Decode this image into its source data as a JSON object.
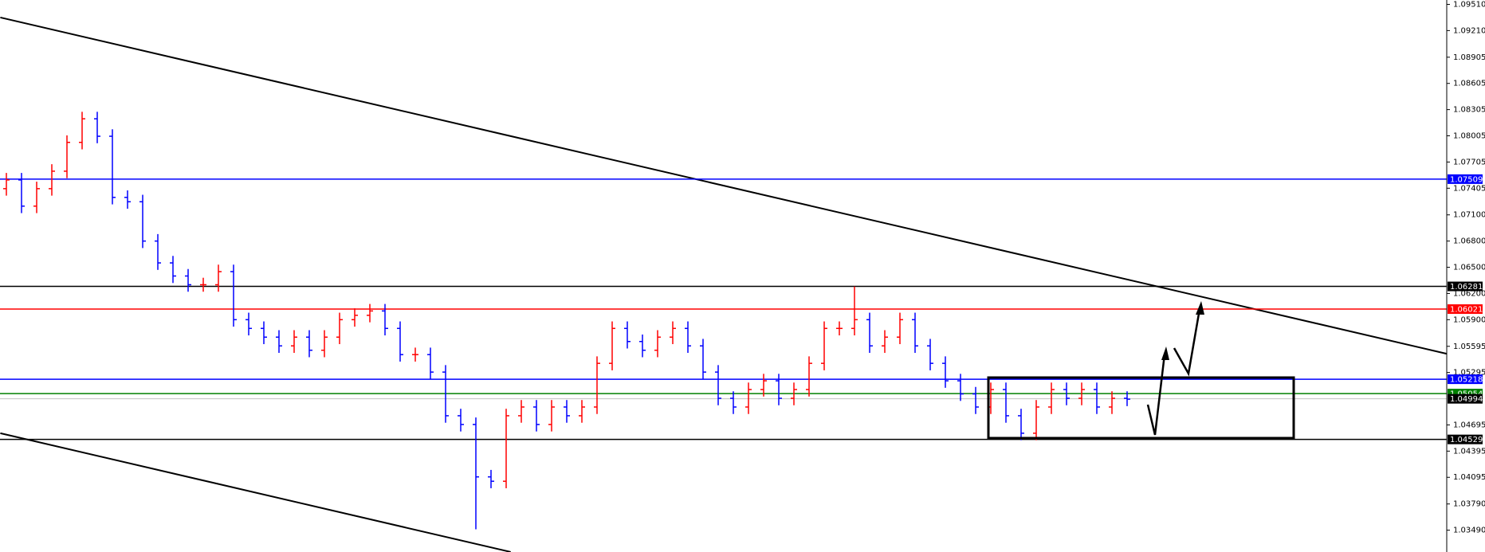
{
  "chart_data": {
    "type": "ohlc",
    "up_color": "#ff0000",
    "down_color": "#0000ff",
    "open": [
      1.074,
      1.075,
      1.072,
      1.074,
      1.076,
      1.0793,
      1.082,
      1.08,
      1.073,
      1.0725,
      1.068,
      1.0655,
      1.064,
      1.063,
      1.063,
      1.0645,
      1.059,
      1.058,
      1.057,
      1.056,
      1.057,
      1.0555,
      1.057,
      1.059,
      1.0595,
      1.06,
      1.058,
      1.055,
      1.055,
      1.053,
      1.048,
      1.047,
      1.041,
      1.0405,
      1.048,
      1.049,
      1.047,
      1.049,
      1.048,
      1.049,
      1.054,
      1.058,
      1.0565,
      1.0555,
      1.057,
      1.058,
      1.056,
      1.053,
      1.05,
      1.049,
      1.051,
      1.052,
      1.05,
      1.051,
      1.054,
      1.058,
      1.058,
      1.059,
      1.056,
      1.057,
      1.059,
      1.056,
      1.054,
      1.052,
      1.0505,
      1.049,
      1.051,
      1.048,
      1.046,
      1.049,
      1.051,
      1.05,
      1.051,
      1.049,
      1.05
    ],
    "high": [
      1.0758,
      1.0758,
      1.0748,
      1.0768,
      1.0801,
      1.0828,
      1.0828,
      1.0808,
      1.0738,
      1.0733,
      1.0688,
      1.0663,
      1.0648,
      1.0638,
      1.0653,
      1.0653,
      1.0598,
      1.0588,
      1.0578,
      1.0578,
      1.0578,
      1.0578,
      1.0598,
      1.0603,
      1.0608,
      1.0608,
      1.0588,
      1.0558,
      1.0558,
      1.0538,
      1.0488,
      1.0478,
      1.0418,
      1.0488,
      1.0498,
      1.0498,
      1.0498,
      1.0498,
      1.0498,
      1.0548,
      1.0588,
      1.0588,
      1.0573,
      1.0578,
      1.0588,
      1.0588,
      1.0568,
      1.0538,
      1.0508,
      1.0518,
      1.0528,
      1.0528,
      1.0518,
      1.0548,
      1.0588,
      1.0588,
      1.0628,
      1.0598,
      1.0578,
      1.0598,
      1.0598,
      1.0568,
      1.0548,
      1.0528,
      1.0513,
      1.0518,
      1.0518,
      1.0488,
      1.0498,
      1.0518,
      1.0518,
      1.0518,
      1.0518,
      1.0508,
      1.0508
    ],
    "low": [
      1.0732,
      1.0712,
      1.0712,
      1.0732,
      1.0752,
      1.0785,
      1.0792,
      1.0722,
      1.0717,
      1.0672,
      1.0647,
      1.0632,
      1.0622,
      1.0622,
      1.0622,
      1.0582,
      1.0572,
      1.0562,
      1.0552,
      1.0552,
      1.0547,
      1.0547,
      1.0562,
      1.0582,
      1.0587,
      1.0572,
      1.0542,
      1.0542,
      1.0522,
      1.0472,
      1.0462,
      1.035,
      1.0397,
      1.0397,
      1.0472,
      1.0462,
      1.0462,
      1.0472,
      1.0472,
      1.0482,
      1.0532,
      1.0557,
      1.0547,
      1.0547,
      1.0562,
      1.0552,
      1.0522,
      1.0492,
      1.0482,
      1.0482,
      1.0502,
      1.0492,
      1.0492,
      1.0502,
      1.0532,
      1.0572,
      1.0572,
      1.0552,
      1.0552,
      1.0562,
      1.0552,
      1.0532,
      1.0512,
      1.0497,
      1.0482,
      1.0482,
      1.0472,
      1.0452,
      1.0452,
      1.0482,
      1.0492,
      1.0492,
      1.0482,
      1.0482,
      1.0491
    ],
    "close": [
      1.075,
      1.072,
      1.074,
      1.076,
      1.0793,
      1.082,
      1.08,
      1.073,
      1.0725,
      1.068,
      1.0655,
      1.064,
      1.063,
      1.063,
      1.0645,
      1.059,
      1.058,
      1.057,
      1.056,
      1.057,
      1.0555,
      1.057,
      1.059,
      1.0595,
      1.06,
      1.058,
      1.055,
      1.055,
      1.053,
      1.048,
      1.047,
      1.041,
      1.0405,
      1.048,
      1.049,
      1.047,
      1.049,
      1.048,
      1.049,
      1.054,
      1.058,
      1.0565,
      1.0555,
      1.057,
      1.058,
      1.056,
      1.053,
      1.05,
      1.049,
      1.051,
      1.052,
      1.05,
      1.051,
      1.054,
      1.058,
      1.058,
      1.059,
      1.056,
      1.057,
      1.059,
      1.056,
      1.054,
      1.052,
      1.0505,
      1.049,
      1.051,
      1.048,
      1.046,
      1.049,
      1.051,
      1.05,
      1.051,
      1.049,
      1.05,
      1.0499
    ],
    "ylim": [
      1.0324,
      1.0956
    ],
    "yticks": [
      {
        "value": 1.0951,
        "label": "1.09510"
      },
      {
        "value": 1.0921,
        "label": "1.09210"
      },
      1.08905,
      1.08605,
      1.08305,
      1.08005,
      1.07705,
      1.07405,
      {
        "value": 1.071,
        "label": "1.07100"
      },
      {
        "value": 1.068,
        "label": "1.06800"
      },
      {
        "value": 1.065,
        "label": "1.06500"
      },
      {
        "value": 1.062,
        "label": "1.06200"
      },
      {
        "value": 1.059,
        "label": "1.05900"
      },
      1.05595,
      1.05295,
      1.04695,
      1.04395,
      1.04095,
      {
        "value": 1.0379,
        "label": "1.03790"
      },
      {
        "value": 1.0349,
        "label": "1.03490"
      }
    ],
    "levels": [
      {
        "value": 1.07509,
        "color": "#0000ff"
      },
      {
        "value": 1.06281,
        "color": "#000000"
      },
      {
        "value": 1.06021,
        "color": "#ff0000"
      },
      {
        "value": 1.05218,
        "color": "#0000ff"
      },
      {
        "value": 1.05054,
        "color": "#008000"
      },
      {
        "value": 1.04994,
        "color": "#000000"
      },
      {
        "value": 1.04529,
        "color": "#000000"
      }
    ],
    "trendlines": [
      {
        "x": [
          -0.4,
          95.1
        ],
        "y": [
          1.0936,
          1.0551
        ]
      },
      {
        "x": [
          -0.4,
          33.3
        ],
        "y": [
          1.046,
          1.0324
        ]
      }
    ]
  }
}
